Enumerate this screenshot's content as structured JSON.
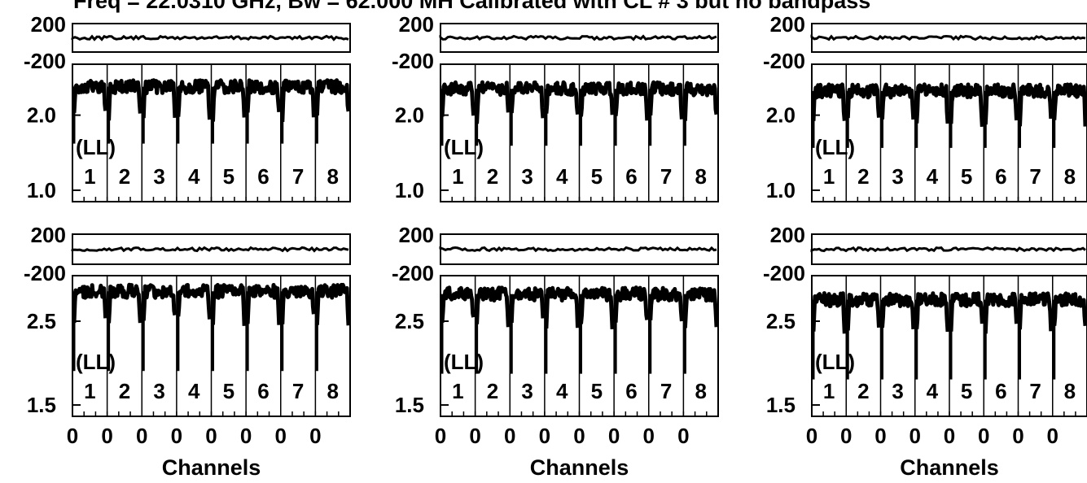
{
  "title": "Freq = 22.0310 GHz, Bw = 62.000 MH   Calibrated with CL # 3 but no bandpass",
  "colors": {
    "ink": "#000000",
    "background": "#ffffff"
  },
  "chart_data": {
    "type": "line",
    "layout": "3 columns x 2 rows of panels, each panel: phase strip (top) + amplitude strip (bottom)",
    "xlabel": "Channels",
    "x_tick_labels": [
      "0",
      "0",
      "0",
      "0",
      "0",
      "0",
      "0",
      "0"
    ],
    "polarization_label": "(LL)",
    "if_labels": [
      "1",
      "2",
      "3",
      "4",
      "5",
      "6",
      "7",
      "8"
    ],
    "phase_axis": {
      "tick_labels": [
        "200",
        "-200"
      ],
      "ylim": [
        -200,
        200
      ],
      "level": 0
    },
    "rows": [
      {
        "amp_axis": {
          "tick_labels": [
            "2.0",
            "1.0"
          ],
          "log_scale": true,
          "ylim": [
            0.9,
            3.2
          ]
        },
        "panels": [
          {
            "column": 1,
            "amp_level": 2.6,
            "amp_drop_depth": 1.0
          },
          {
            "column": 2,
            "amp_level": 2.55,
            "amp_drop_depth": 1.0
          },
          {
            "column": 3,
            "amp_level": 2.5,
            "amp_drop_depth": 1.0
          }
        ]
      },
      {
        "amp_axis": {
          "tick_labels": [
            "2.5",
            "1.5"
          ],
          "log_scale": true,
          "ylim": [
            1.4,
            3.3
          ]
        },
        "panels": [
          {
            "column": 1,
            "amp_level": 3.0,
            "amp_drop_depth": 1.4
          },
          {
            "column": 2,
            "amp_level": 2.95,
            "amp_drop_depth": 1.4
          },
          {
            "column": 3,
            "amp_level": 2.85,
            "amp_drop_depth": 1.4
          }
        ]
      }
    ]
  }
}
